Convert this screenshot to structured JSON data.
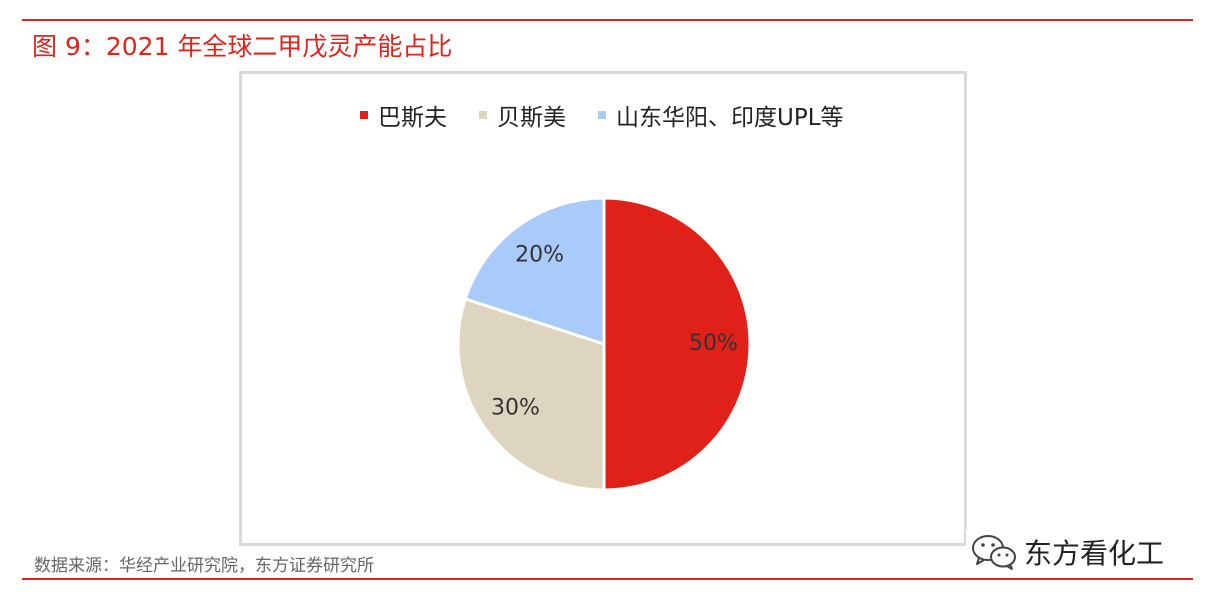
{
  "figure": {
    "title": "图 9：2021 年全球二甲戊灵产能占比",
    "source": "数据来源：华经产业研究院，东方证券研究所"
  },
  "watermark": {
    "text": "东方看化工",
    "icon": "wechat-icon"
  },
  "colors": {
    "accent": "#e0241a",
    "frame": "#d9d9d9"
  },
  "chart_data": {
    "type": "pie",
    "title": "",
    "legend_position": "top",
    "start_angle_deg": 0,
    "direction": "clockwise",
    "slices": [
      {
        "label": "巴斯夫",
        "value": 50,
        "value_label": "50%",
        "color": "#e0211a"
      },
      {
        "label": "贝斯美",
        "value": 30,
        "value_label": "30%",
        "color": "#ded5c0"
      },
      {
        "label": "山东华阳、印度UPL等",
        "value": 20,
        "value_label": "20%",
        "color": "#a9cbfa"
      }
    ]
  }
}
